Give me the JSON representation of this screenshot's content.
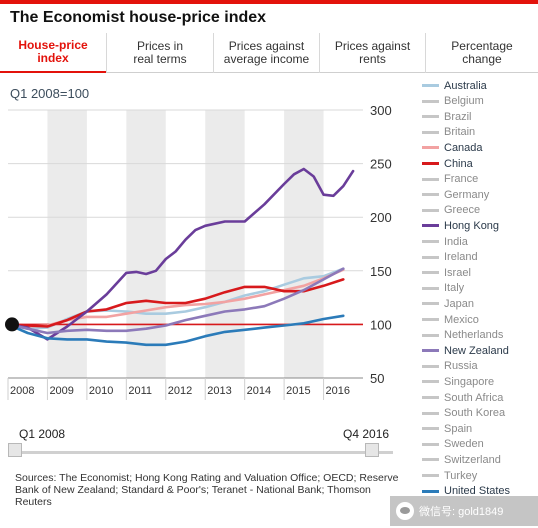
{
  "header": {
    "title": "The Economist house-price index"
  },
  "tabs": [
    {
      "label": "House-price\nindex",
      "active": true
    },
    {
      "label": "Prices in\nreal terms",
      "active": false
    },
    {
      "label": "Prices against\naverage income",
      "active": false
    },
    {
      "label": "Prices against\nrents",
      "active": false
    },
    {
      "label": "Percentage\nchange",
      "active": false
    }
  ],
  "subtitle": "Q1 2008=100",
  "slider": {
    "start_label": "Q1 2008",
    "end_label": "Q4 2016",
    "start_value": 0.0,
    "end_value": 1.0
  },
  "sources": "Sources: The Economist; Hong Kong Rating and Valuation Office; OECD; Reserve Bank of New Zealand; Standard & Poor's; Teranet - National Bank; Thomson Reuters",
  "legend": [
    {
      "name": "Australia",
      "color": "#a9cbe0",
      "on": true
    },
    {
      "name": "Belgium",
      "color": "#c6c6c6",
      "on": false
    },
    {
      "name": "Brazil",
      "color": "#c6c6c6",
      "on": false
    },
    {
      "name": "Britain",
      "color": "#c6c6c6",
      "on": false
    },
    {
      "name": "Canada",
      "color": "#f2a2a2",
      "on": true
    },
    {
      "name": "China",
      "color": "#d7191c",
      "on": true
    },
    {
      "name": "France",
      "color": "#c6c6c6",
      "on": false
    },
    {
      "name": "Germany",
      "color": "#c6c6c6",
      "on": false
    },
    {
      "name": "Greece",
      "color": "#c6c6c6",
      "on": false
    },
    {
      "name": "Hong Kong",
      "color": "#6a3d9a",
      "on": true
    },
    {
      "name": "India",
      "color": "#c6c6c6",
      "on": false
    },
    {
      "name": "Ireland",
      "color": "#c6c6c6",
      "on": false
    },
    {
      "name": "Israel",
      "color": "#c6c6c6",
      "on": false
    },
    {
      "name": "Italy",
      "color": "#c6c6c6",
      "on": false
    },
    {
      "name": "Japan",
      "color": "#c6c6c6",
      "on": false
    },
    {
      "name": "Mexico",
      "color": "#c6c6c6",
      "on": false
    },
    {
      "name": "Netherlands",
      "color": "#c6c6c6",
      "on": false
    },
    {
      "name": "New Zealand",
      "color": "#8c79b9",
      "on": true
    },
    {
      "name": "Russia",
      "color": "#c6c6c6",
      "on": false
    },
    {
      "name": "Singapore",
      "color": "#c6c6c6",
      "on": false
    },
    {
      "name": "South Africa",
      "color": "#c6c6c6",
      "on": false
    },
    {
      "name": "South Korea",
      "color": "#c6c6c6",
      "on": false
    },
    {
      "name": "Spain",
      "color": "#c6c6c6",
      "on": false
    },
    {
      "name": "Sweden",
      "color": "#c6c6c6",
      "on": false
    },
    {
      "name": "Switzerland",
      "color": "#c6c6c6",
      "on": false
    },
    {
      "name": "Turkey",
      "color": "#c6c6c6",
      "on": false
    },
    {
      "name": "United States",
      "color": "#2b7bb9",
      "on": true
    }
  ],
  "watermark": {
    "text": "微信号: gold1849"
  },
  "chart_data": {
    "type": "line",
    "title": "",
    "xlabel": "",
    "ylabel": "",
    "x_ticks": [
      "2008",
      "2009",
      "2010",
      "2011",
      "2012",
      "2013",
      "2014",
      "2015",
      "2016"
    ],
    "y_ticks": [
      "50",
      "100",
      "150",
      "200",
      "250",
      "300"
    ],
    "xlim": [
      2008.0,
      2017.0
    ],
    "ylim": [
      50,
      300
    ],
    "baseline": 100,
    "baseline_color": "#d7191c",
    "start_marker": {
      "x": 2008.0,
      "y": 100
    },
    "series": [
      {
        "name": "Australia",
        "color": "#a9cbe0",
        "x": [
          2008.0,
          2008.5,
          2009.0,
          2009.5,
          2010.0,
          2010.5,
          2011.0,
          2011.5,
          2012.0,
          2012.5,
          2013.0,
          2013.5,
          2014.0,
          2014.5,
          2015.0,
          2015.5,
          2016.0,
          2016.5
        ],
        "y": [
          100,
          96,
          97,
          105,
          112,
          113,
          112,
          110,
          110,
          112,
          116,
          121,
          127,
          131,
          137,
          143,
          145,
          152
        ]
      },
      {
        "name": "Canada",
        "color": "#f2a2a2",
        "x": [
          2008.0,
          2008.5,
          2009.0,
          2009.5,
          2010.0,
          2010.5,
          2011.0,
          2011.5,
          2012.0,
          2012.5,
          2013.0,
          2013.5,
          2014.0,
          2014.5,
          2015.0,
          2015.5,
          2016.0,
          2016.5
        ],
        "y": [
          100,
          98,
          99,
          104,
          107,
          107,
          110,
          113,
          116,
          118,
          119,
          121,
          124,
          128,
          132,
          136,
          143,
          151
        ]
      },
      {
        "name": "China",
        "color": "#d7191c",
        "x": [
          2008.0,
          2008.5,
          2009.0,
          2009.5,
          2010.0,
          2010.5,
          2011.0,
          2011.5,
          2012.0,
          2012.5,
          2013.0,
          2013.5,
          2014.0,
          2014.5,
          2015.0,
          2015.5,
          2016.0,
          2016.5
        ],
        "y": [
          100,
          99,
          98,
          104,
          112,
          114,
          120,
          122,
          120,
          120,
          124,
          130,
          135,
          135,
          131,
          131,
          136,
          142
        ]
      },
      {
        "name": "Hong Kong",
        "color": "#6a3d9a",
        "x": [
          2008.0,
          2008.5,
          2009.0,
          2009.5,
          2010.0,
          2010.5,
          2011.0,
          2011.25,
          2011.5,
          2011.75,
          2012.0,
          2012.25,
          2012.5,
          2012.75,
          2013.0,
          2013.5,
          2014.0,
          2014.5,
          2015.0,
          2015.25,
          2015.5,
          2015.75,
          2016.0,
          2016.25,
          2016.5,
          2016.75
        ],
        "y": [
          100,
          97,
          86,
          98,
          112,
          128,
          148,
          149,
          147,
          150,
          161,
          168,
          179,
          188,
          192,
          196,
          196,
          212,
          231,
          240,
          245,
          238,
          221,
          220,
          229,
          243
        ]
      },
      {
        "name": "New Zealand",
        "color": "#8c79b9",
        "x": [
          2008.0,
          2008.5,
          2009.0,
          2009.5,
          2010.0,
          2010.5,
          2011.0,
          2011.5,
          2012.0,
          2012.5,
          2013.0,
          2013.5,
          2014.0,
          2014.5,
          2015.0,
          2015.5,
          2016.0,
          2016.5
        ],
        "y": [
          100,
          96,
          92,
          94,
          95,
          94,
          94,
          96,
          99,
          104,
          108,
          112,
          114,
          117,
          124,
          132,
          142,
          152
        ]
      },
      {
        "name": "United States",
        "color": "#2b7bb9",
        "x": [
          2008.0,
          2008.5,
          2009.0,
          2009.5,
          2010.0,
          2010.5,
          2011.0,
          2011.5,
          2012.0,
          2012.5,
          2013.0,
          2013.5,
          2014.0,
          2014.5,
          2015.0,
          2015.5,
          2016.0,
          2016.5
        ],
        "y": [
          100,
          92,
          87,
          86,
          86,
          84,
          83,
          81,
          81,
          84,
          89,
          93,
          95,
          97,
          99,
          101,
          105,
          108
        ]
      }
    ]
  }
}
